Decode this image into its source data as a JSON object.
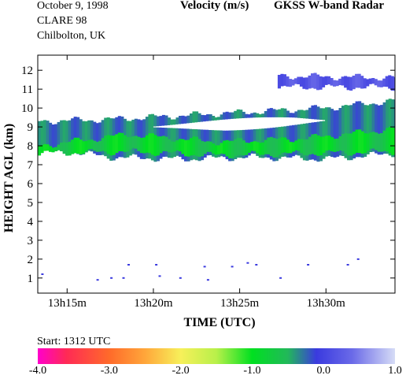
{
  "header": {
    "date": "October   9, 1998",
    "campaign": "CLARE 98",
    "site": "Chilbolton, UK",
    "quantity": "Velocity (m/s)",
    "instrument": "GKSS  W-band Radar"
  },
  "footer": {
    "start": "Start: 1312 UTC"
  },
  "chart_data": {
    "type": "heatmap",
    "title": "Velocity (m/s)",
    "xlabel": "TIME (UTC)",
    "ylabel": "HEIGHT AGL (km)",
    "x_range_minutes_after_1300": [
      13.3,
      34.0
    ],
    "xticks": [
      {
        "minute": 15,
        "label": "13h15m"
      },
      {
        "minute": 20,
        "label": "13h20m"
      },
      {
        "minute": 25,
        "label": "13h25m"
      },
      {
        "minute": 30,
        "label": "13h30m"
      }
    ],
    "ylim": [
      0.2,
      12.8
    ],
    "yticks": [
      1,
      2,
      3,
      4,
      5,
      6,
      7,
      8,
      9,
      10,
      11,
      12
    ],
    "colorbar": {
      "label_values": [
        -4.0,
        -3.0,
        -2.0,
        -1.0,
        0.0,
        1.0
      ],
      "labels": [
        "-4.0",
        "-3.0",
        "-2.0",
        "-1.0",
        "0.0",
        "1.0"
      ],
      "stops": [
        {
          "v": -4.0,
          "color": "#ff00cc"
        },
        {
          "v": -3.6,
          "color": "#ff2a55"
        },
        {
          "v": -3.0,
          "color": "#ff6a2a"
        },
        {
          "v": -2.5,
          "color": "#ffa63a"
        },
        {
          "v": -2.0,
          "color": "#f7f05a"
        },
        {
          "v": -1.5,
          "color": "#b8f04a"
        },
        {
          "v": -1.0,
          "color": "#00e020"
        },
        {
          "v": -0.5,
          "color": "#22b85a"
        },
        {
          "v": -0.1,
          "color": "#3a3adf"
        },
        {
          "v": 0.4,
          "color": "#6a6ae8"
        },
        {
          "v": 1.0,
          "color": "#d6dcf6"
        }
      ]
    },
    "cloud_layers": [
      {
        "name": "main",
        "time_start": 13.3,
        "time_end": 34.0,
        "base_km": [
          7.9,
          7.4,
          7.3,
          7.4,
          7.3,
          7.6
        ],
        "top_km": [
          9.3,
          9.4,
          9.6,
          9.8,
          10.0,
          10.4
        ],
        "velocity_ms": -0.3
      },
      {
        "name": "upper",
        "time_start": 27.2,
        "time_end": 34.0,
        "base_km": [
          11.1,
          11.1
        ],
        "top_km": [
          11.7,
          11.6
        ],
        "velocity_ms": 0.2
      }
    ],
    "core_regions": [
      {
        "time_start": 13.3,
        "time_end": 34.0,
        "base_km": [
          7.6,
          7.7,
          7.5,
          7.6,
          7.7
        ],
        "top_km": [
          8.0,
          8.6,
          8.2,
          8.4,
          8.9
        ],
        "velocity_ms": -0.8
      }
    ],
    "clear_pockets": [
      {
        "time_start": 20.0,
        "time_end": 32.2,
        "center_km": [
          9.0,
          9.1,
          9.3,
          9.4
        ],
        "half_thickness_km": [
          0.15,
          0.3,
          0.35,
          0.2
        ]
      }
    ],
    "noise_points": [
      {
        "t": 13.5,
        "h": 1.2
      },
      {
        "t": 16.7,
        "h": 0.9
      },
      {
        "t": 17.5,
        "h": 1.0
      },
      {
        "t": 18.2,
        "h": 1.0
      },
      {
        "t": 18.5,
        "h": 1.7
      },
      {
        "t": 20.1,
        "h": 1.7
      },
      {
        "t": 20.3,
        "h": 1.1
      },
      {
        "t": 21.5,
        "h": 1.0
      },
      {
        "t": 22.9,
        "h": 1.6
      },
      {
        "t": 23.1,
        "h": 0.9
      },
      {
        "t": 24.5,
        "h": 1.6
      },
      {
        "t": 25.4,
        "h": 1.8
      },
      {
        "t": 25.9,
        "h": 1.7
      },
      {
        "t": 27.3,
        "h": 1.0
      },
      {
        "t": 28.9,
        "h": 1.7
      },
      {
        "t": 31.2,
        "h": 1.7
      },
      {
        "t": 31.8,
        "h": 2.0
      }
    ]
  }
}
